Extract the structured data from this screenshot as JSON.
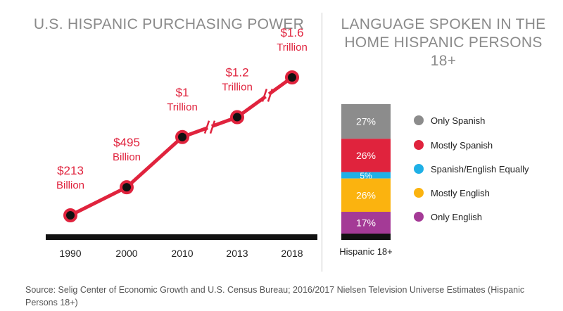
{
  "chart_data": [
    {
      "type": "line",
      "title": "U.S. HISPANIC PURCHASING POWER",
      "categories": [
        "1990",
        "2000",
        "2010",
        "2013",
        "2018"
      ],
      "values": [
        0.213,
        0.495,
        1.0,
        1.2,
        1.6
      ],
      "value_unit": "Trillion USD",
      "point_labels": [
        [
          "$213",
          "Billion"
        ],
        [
          "$495",
          "Billion"
        ],
        [
          "$1",
          "Trillion"
        ],
        [
          "$1.2",
          "Trillion"
        ],
        [
          "$1.6",
          "Trillion"
        ]
      ],
      "axis_breaks_after": [
        "2010",
        "2013"
      ],
      "colors": {
        "line": "#e0233d",
        "point": "#111111",
        "label": "#e0233d",
        "axis": "#111111"
      }
    },
    {
      "type": "bar",
      "stacked": true,
      "title": "LANGUAGE SPOKEN IN THE HOME HISPANIC PERSONS 18+",
      "categories": [
        "Hispanic 18+"
      ],
      "series": [
        {
          "name": "Only Spanish",
          "values": [
            27
          ],
          "label": "27%",
          "color": "#8c8c8c"
        },
        {
          "name": "Mostly Spanish",
          "values": [
            26
          ],
          "label": "26%",
          "color": "#e0233d"
        },
        {
          "name": "Spanish/English Equally",
          "values": [
            5
          ],
          "label": "5%",
          "color": "#1fb0e6"
        },
        {
          "name": "Mostly English",
          "values": [
            26
          ],
          "label": "26%",
          "color": "#fbb30f"
        },
        {
          "name": "Only English",
          "values": [
            17
          ],
          "label": "17%",
          "color": "#a43a96"
        }
      ],
      "legend_position": "right"
    }
  ],
  "source": "Source: Selig Center of Economic Growth and U.S. Census Bureau; 2016/2017 Nielsen Television Universe Estimates (Hispanic Persons 18+)"
}
